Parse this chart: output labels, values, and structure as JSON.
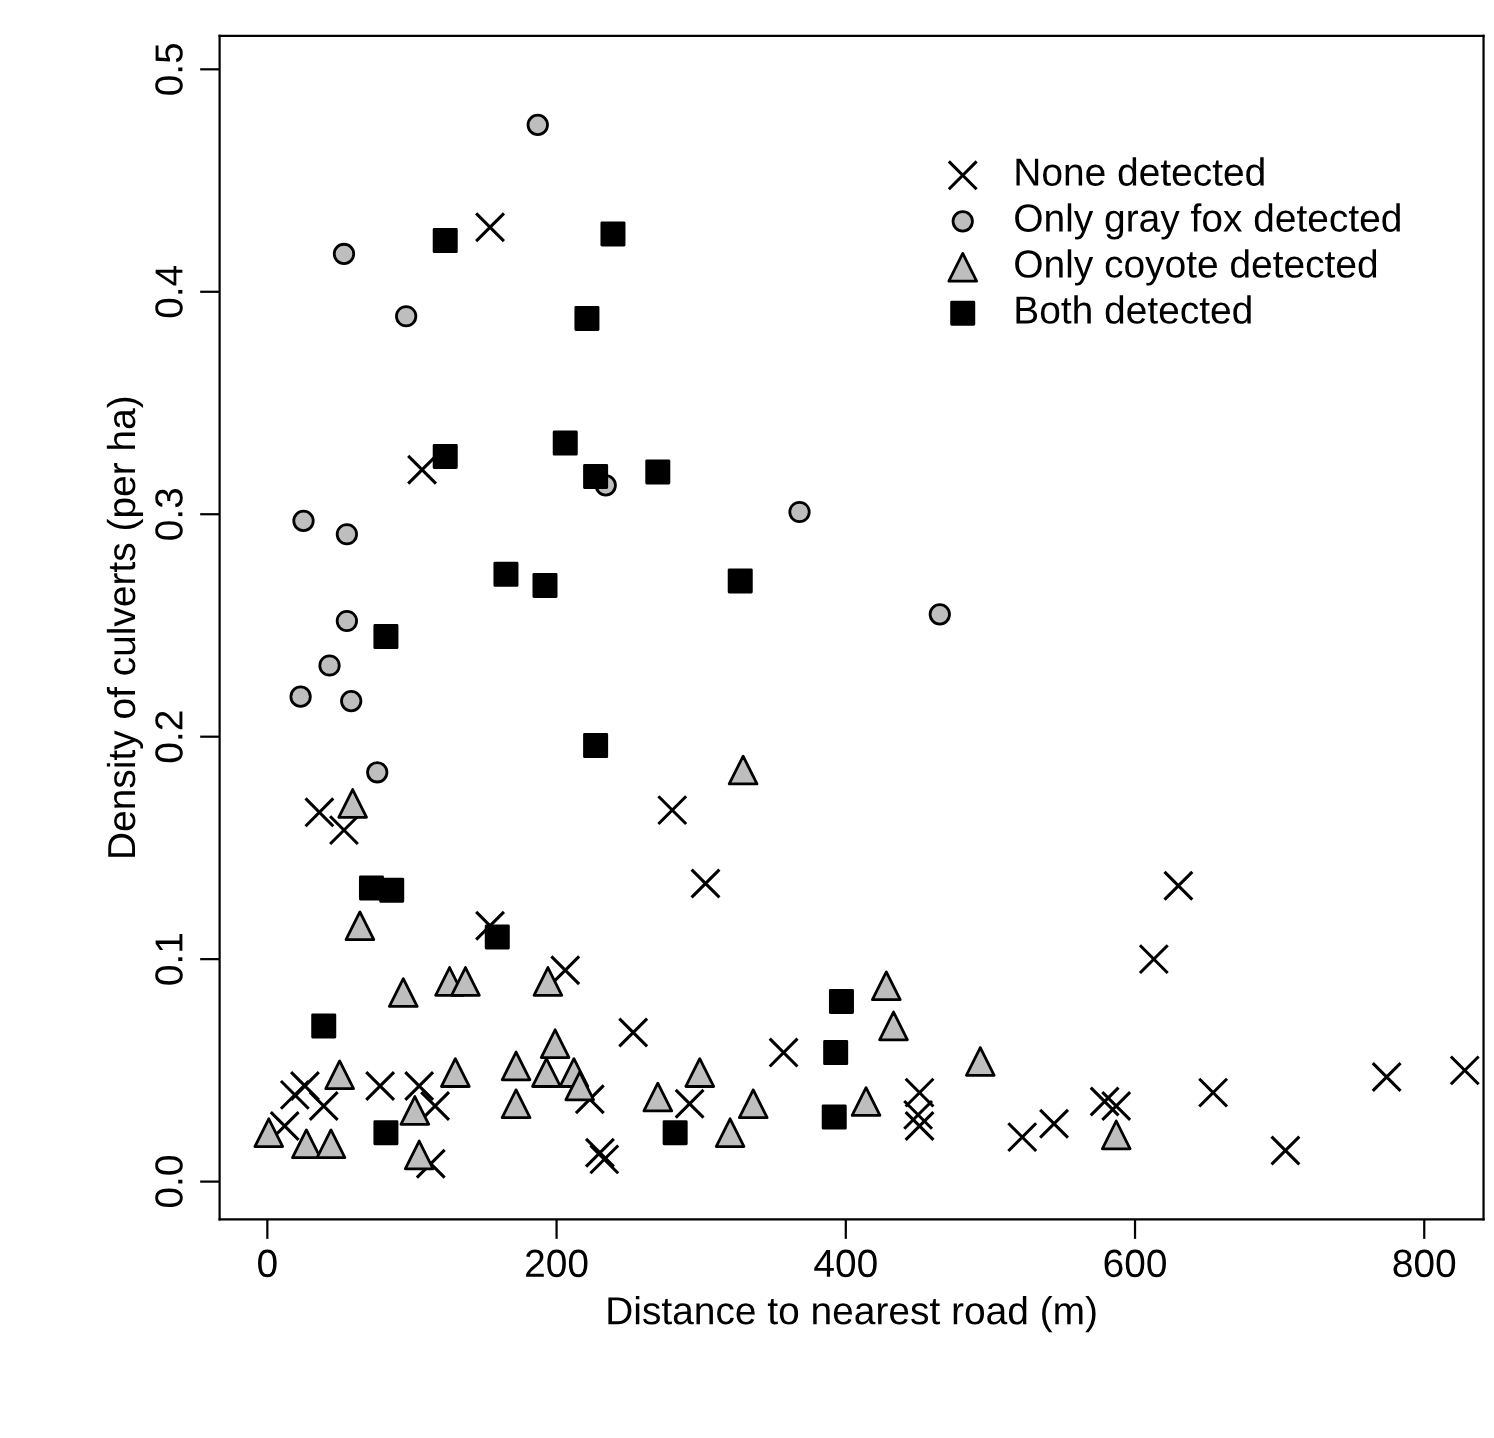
{
  "chart_data": {
    "type": "scatter",
    "xlabel": "Distance to nearest road (m)",
    "ylabel": "Density of culverts (per ha)",
    "xlim": [
      -33,
      841
    ],
    "ylim": [
      -0.017,
      0.515
    ],
    "xticks": [
      0,
      200,
      400,
      600,
      800
    ],
    "yticks": [
      {
        "value": 0,
        "label": "0.0"
      },
      0.1,
      0.2,
      0.3,
      0.4,
      0.5
    ],
    "grid": false,
    "legend": "top right",
    "series": [
      {
        "name": "None detected",
        "color": "#000000",
        "marker": "cross",
        "x": [
          154,
          107,
          36,
          53,
          154,
          206,
          253,
          280,
          303,
          26,
          19,
          39,
          12,
          78,
          105,
          116,
          223,
          230,
          233,
          292,
          113,
          357,
          451,
          450,
          451,
          522,
          544,
          579,
          587,
          654,
          704,
          774,
          828,
          613,
          630
        ],
        "values": [
          0.429,
          0.32,
          0.166,
          0.158,
          0.115,
          0.095,
          0.067,
          0.167,
          0.134,
          0.043,
          0.039,
          0.034,
          0.025,
          0.043,
          0.043,
          0.034,
          0.037,
          0.013,
          0.01,
          0.035,
          0.008,
          0.058,
          0.04,
          0.03,
          0.025,
          0.02,
          0.026,
          0.036,
          0.034,
          0.04,
          0.014,
          0.047,
          0.05,
          0.1,
          0.133
        ]
      },
      {
        "name": "Only gray fox detected",
        "color": "#bebebe",
        "marker": "circle",
        "x": [
          187,
          53,
          96,
          25,
          55,
          55,
          43,
          23,
          58,
          76,
          234,
          465,
          368
        ],
        "values": [
          0.475,
          0.417,
          0.389,
          0.297,
          0.291,
          0.252,
          0.232,
          0.218,
          0.216,
          0.184,
          0.313,
          0.255,
          0.301
        ]
      },
      {
        "name": "Only coyote detected",
        "color": "#bebebe",
        "marker": "triangle",
        "x": [
          59,
          329,
          64,
          94,
          126,
          137,
          194,
          199,
          50,
          130,
          172,
          193,
          212,
          216,
          299,
          172,
          102,
          270,
          1,
          27,
          44,
          105,
          428,
          433,
          493,
          336,
          320,
          414,
          587
        ],
        "values": [
          0.17,
          0.185,
          0.115,
          0.085,
          0.09,
          0.09,
          0.09,
          0.062,
          0.048,
          0.049,
          0.052,
          0.049,
          0.049,
          0.043,
          0.049,
          0.035,
          0.032,
          0.038,
          0.022,
          0.017,
          0.017,
          0.012,
          0.088,
          0.07,
          0.054,
          0.035,
          0.022,
          0.036,
          0.021
        ]
      },
      {
        "name": "Both detected",
        "color": "#000000",
        "marker": "square",
        "x": [
          123,
          239,
          221,
          123,
          206,
          227,
          270,
          165,
          192,
          327,
          82,
          227,
          72,
          86,
          159,
          39,
          82,
          282,
          397,
          393,
          392
        ],
        "values": [
          0.423,
          0.426,
          0.388,
          0.326,
          0.332,
          0.317,
          0.319,
          0.273,
          0.268,
          0.27,
          0.245,
          0.196,
          0.132,
          0.131,
          0.11,
          0.07,
          0.022,
          0.022,
          0.081,
          0.058,
          0.029
        ]
      }
    ]
  }
}
